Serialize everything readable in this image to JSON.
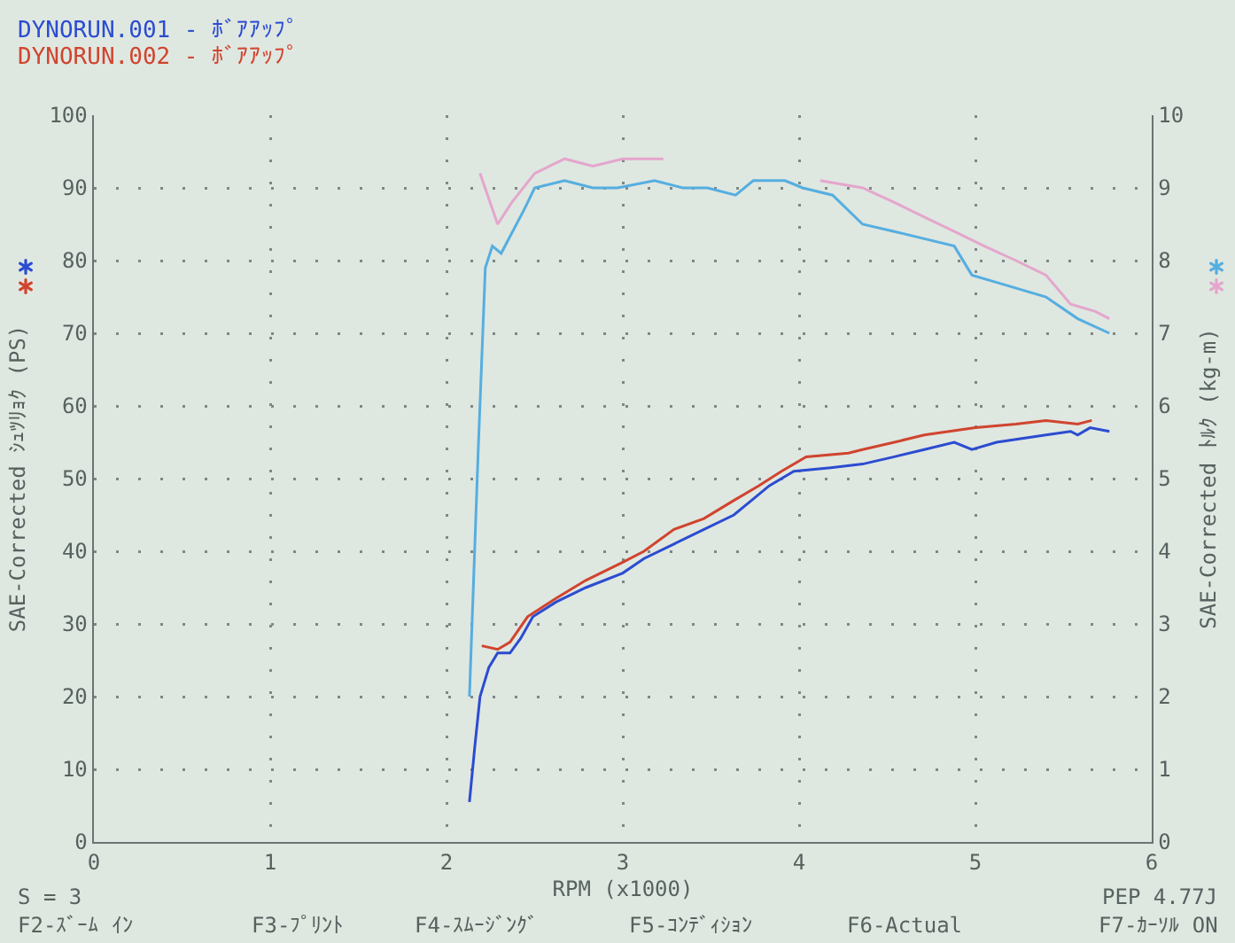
{
  "chart_data": {
    "type": "line",
    "xlabel": "RPM (x1000)",
    "ylabel": "SAE-Corrected ｼｭﾂﾘｮｸ (PS)",
    "y2label": "SAE-Corrected ﾄﾙｸ (kg-m)",
    "xlim": [
      0,
      6
    ],
    "xticks": [
      0,
      1,
      2,
      3,
      4,
      5,
      6
    ],
    "ylim": [
      0,
      100
    ],
    "yticks": [
      0,
      10,
      20,
      30,
      40,
      50,
      60,
      70,
      80,
      90,
      100
    ],
    "y2lim": [
      0,
      10
    ],
    "y2ticks": [
      0,
      1,
      2,
      3,
      4,
      5,
      6,
      7,
      8,
      9,
      10
    ],
    "grid": true,
    "legend": "top left",
    "marker": "none",
    "line_style": "solid",
    "annotations": [
      "S = 3",
      "PEP 4.77J",
      "F2-ｽﾞｰﾑ ｲﾝ",
      "F3-ﾌﾟﾘﾝﾄ",
      "F4-ｽﾑｰｼﾞﾝｸﾞ",
      "F5-ｺﾝﾃﾞｨｼｮﾝ",
      "F6-Actual",
      "F7-ｶｰｿﾙ ON"
    ],
    "series": [
      {
        "name": "DYNORUN.001 - ﾎﾞｱｱｯﾌﾟ",
        "color": "#2b4cd0",
        "x": [
          2.13,
          2.16,
          2.19,
          2.24,
          2.29,
          2.36,
          2.42,
          2.49,
          2.62,
          2.79,
          3.0,
          3.12,
          3.29,
          3.46,
          3.63,
          3.73,
          3.83,
          3.97,
          4.18,
          4.36,
          4.54,
          4.71,
          4.88,
          4.98,
          5.12,
          5.4,
          5.54,
          5.58,
          5.65,
          5.76
        ],
        "values": [
          5.5,
          13,
          20,
          24,
          26,
          26,
          28,
          31,
          33,
          35,
          37,
          39,
          41,
          43,
          45,
          47,
          49,
          51,
          51.5,
          52,
          53,
          54,
          55,
          54,
          55,
          56,
          56.5,
          56,
          57,
          56.5
        ]
      },
      {
        "name": "DYNORUN.002 - ﾎﾞｱｱｯﾌﾟ",
        "color": "#d0442e",
        "x": [
          2.2,
          2.29,
          2.36,
          2.46,
          2.62,
          2.79,
          3.0,
          3.12,
          3.29,
          3.46,
          3.63,
          3.77,
          3.9,
          4.04,
          4.28,
          4.36,
          4.54,
          4.71,
          5.0,
          5.23,
          5.4,
          5.58,
          5.66
        ],
        "values": [
          27,
          26.5,
          27.5,
          31,
          33.5,
          36,
          38.5,
          40,
          43,
          44.5,
          47,
          49,
          51,
          53,
          53.5,
          54,
          55,
          56,
          57,
          57.5,
          58,
          57.5,
          58
        ]
      },
      {
        "color": "#55aee0",
        "axis": "y2",
        "x": [
          2.13,
          2.18,
          2.22,
          2.26,
          2.31,
          2.44,
          2.5,
          2.67,
          2.83,
          2.97,
          3.18,
          3.34,
          3.48,
          3.64,
          3.74,
          3.92,
          4.02,
          4.19,
          4.36,
          4.54,
          4.71,
          4.88,
          4.98,
          5.12,
          5.4,
          5.58,
          5.76
        ],
        "values": [
          2.0,
          5.4,
          7.9,
          8.2,
          8.1,
          8.7,
          9.0,
          9.1,
          9.0,
          9.0,
          9.1,
          9.0,
          9.0,
          8.9,
          9.1,
          9.1,
          9.0,
          8.9,
          8.5,
          8.4,
          8.3,
          8.2,
          7.8,
          7.7,
          7.5,
          7.2,
          7.0
        ]
      },
      {
        "color": "#e4a6cc",
        "axis": "y2",
        "x": [
          2.19,
          2.29,
          2.37,
          2.5,
          2.67,
          2.83,
          3.0,
          3.1,
          3.23,
          3.5,
          3.8,
          4.12,
          4.36,
          4.54,
          4.71,
          4.88,
          5.05,
          5.23,
          5.4,
          5.54,
          5.68,
          5.76
        ],
        "values": [
          9.2,
          8.5,
          8.8,
          9.2,
          9.4,
          9.3,
          9.4,
          9.4,
          9.4,
          null,
          null,
          9.1,
          9.0,
          8.8,
          8.6,
          8.4,
          8.2,
          8.0,
          7.8,
          7.4,
          7.3,
          7.2
        ]
      }
    ]
  }
}
